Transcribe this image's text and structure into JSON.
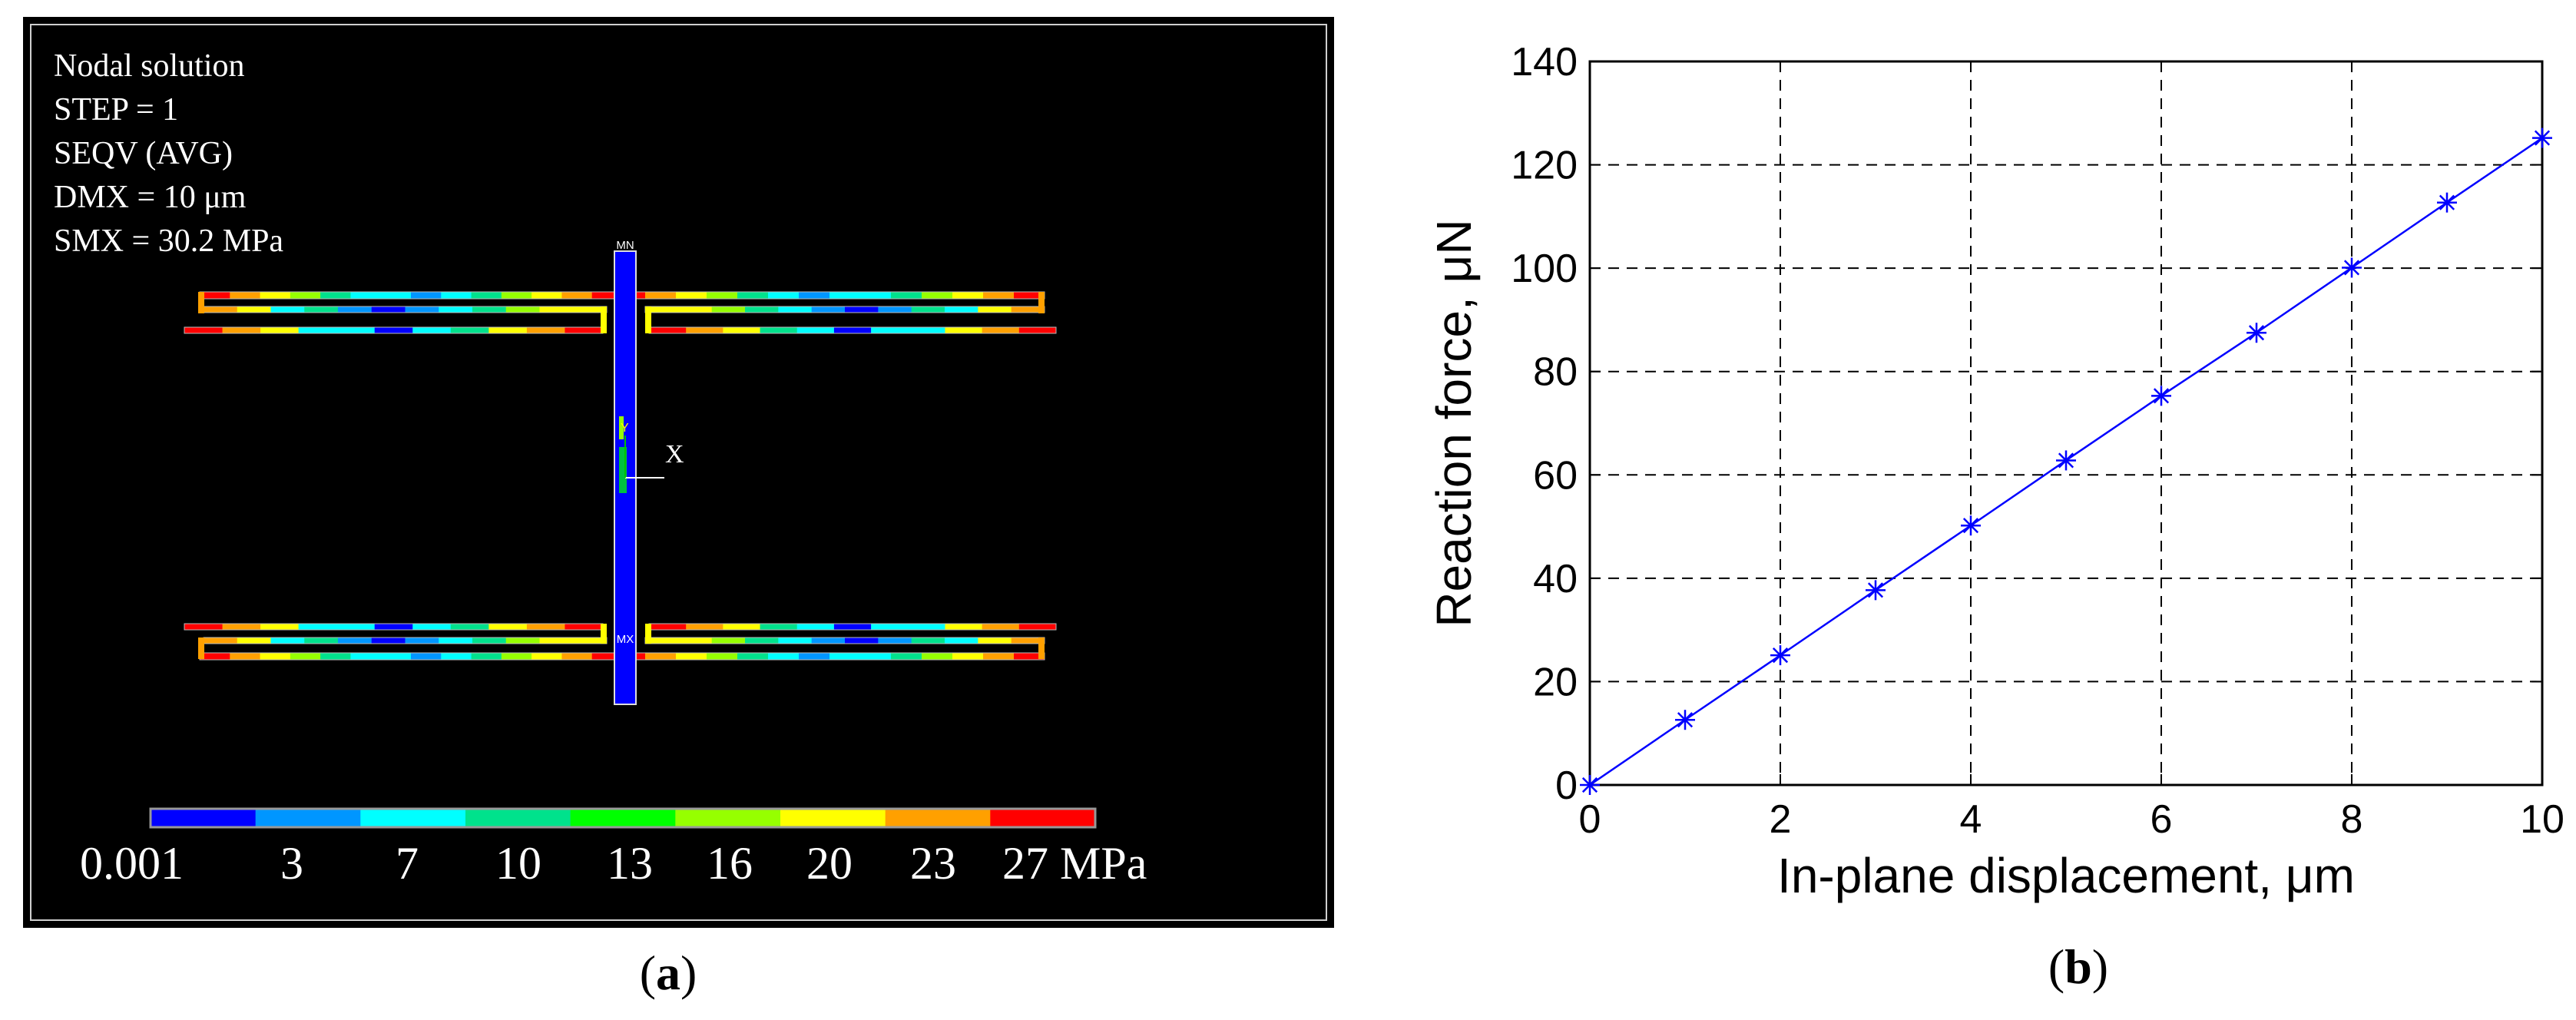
{
  "panel_a": {
    "caption": "(a)",
    "caption_letter": "a",
    "info": [
      "Nodal solution",
      "STEP = 1",
      "SEQV (AVG)",
      "DMX = 10 μm",
      "SMX = 30.2 MPa"
    ],
    "colorbar": {
      "colors": [
        "#0000ff",
        "#0096ff",
        "#00ffff",
        "#00e28c",
        "#00ff00",
        "#96ff00",
        "#ffff00",
        "#ffa000",
        "#ff0000"
      ],
      "labels": [
        "0.001",
        "3",
        "7",
        "10",
        "13",
        "16",
        "20",
        "23",
        "27 MPa"
      ]
    },
    "markers": {
      "mx": "MX",
      "mn": "MN"
    },
    "axes_labels": {
      "x": "X",
      "y": "Y"
    }
  },
  "panel_b": {
    "caption": "(b)",
    "caption_letter": "b",
    "colors": {
      "series": "#0000ff",
      "grid": "#000000"
    }
  },
  "chart_data": {
    "type": "line",
    "title": "",
    "xlabel": "In-plane displacement, μm",
    "ylabel": "Reaction force, μN",
    "xlim": [
      0,
      10
    ],
    "ylim": [
      0,
      140
    ],
    "xticks": [
      "0",
      "2",
      "4",
      "6",
      "8",
      "10"
    ],
    "yticks": [
      "0",
      "20",
      "40",
      "60",
      "80",
      "100",
      "120",
      "140"
    ],
    "grid": true,
    "legend": "none",
    "marker": "asterisk",
    "series": [
      {
        "x": [
          0,
          1,
          2,
          3,
          4,
          5,
          6,
          7,
          8,
          9,
          10
        ],
        "y": [
          0,
          12.6,
          25.1,
          37.7,
          50.2,
          62.8,
          75.3,
          87.5,
          100.1,
          112.7,
          125.2
        ]
      }
    ]
  }
}
